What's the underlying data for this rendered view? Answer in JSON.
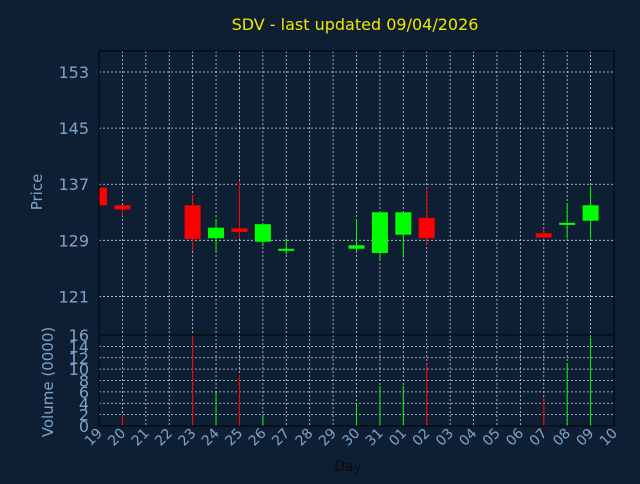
{
  "colors": {
    "background": "#0f1f33",
    "title": "#f2e600",
    "axis_text": "#7ea3c8",
    "grid": "#c8d2dc",
    "up": "#00ff00",
    "down": "#ff0000"
  },
  "chart_data": {
    "type": "candlestick",
    "title": "SDV - last updated 09/04/2026",
    "price_panel": {
      "ylabel": "Price",
      "ylim": [
        115.5,
        156
      ],
      "yticks": [
        121,
        129,
        137,
        145,
        153
      ],
      "grid": true
    },
    "volume_panel": {
      "ylabel": "Volume (0000)",
      "ylim": [
        0,
        16
      ],
      "yticks": [
        0,
        2,
        4,
        6,
        8,
        10,
        12,
        14,
        16
      ],
      "grid": true
    },
    "xlabel": "Day",
    "x_ticks": [
      "19",
      "20",
      "21",
      "22",
      "23",
      "24",
      "25",
      "26",
      "27",
      "28",
      "29",
      "30",
      "31",
      "01",
      "02",
      "03",
      "04",
      "05",
      "06",
      "07",
      "08",
      "09",
      "10"
    ],
    "candles": [
      {
        "x": "19",
        "open": 136.5,
        "high": 136.5,
        "low": 134.0,
        "close": 134.0,
        "volume": 0
      },
      {
        "x": "20",
        "open": 134.0,
        "high": 134.0,
        "low": 132.5,
        "close": 133.4,
        "volume": 2
      },
      {
        "x": "23",
        "open": 134.0,
        "high": 135.5,
        "low": 127.5,
        "close": 129.2,
        "volume": 16
      },
      {
        "x": "24",
        "open": 129.3,
        "high": 132.0,
        "low": 127.5,
        "close": 130.8,
        "volume": 6
      },
      {
        "x": "25",
        "open": 130.7,
        "high": 137.5,
        "low": 129.2,
        "close": 130.2,
        "volume": 9
      },
      {
        "x": "26",
        "open": 128.8,
        "high": 131.5,
        "low": 128.2,
        "close": 131.3,
        "volume": 2
      },
      {
        "x": "27",
        "open": 127.5,
        "high": 129.3,
        "low": 127.0,
        "close": 127.8,
        "volume": 0
      },
      {
        "x": "30",
        "open": 127.8,
        "high": 132.0,
        "low": 127.5,
        "close": 128.3,
        "volume": 4
      },
      {
        "x": "31",
        "open": 127.2,
        "high": 133.0,
        "low": 126.3,
        "close": 133.0,
        "volume": 7
      },
      {
        "x": "01",
        "open": 129.8,
        "high": 133.0,
        "low": 126.5,
        "close": 133.0,
        "volume": 7
      },
      {
        "x": "02",
        "open": 132.2,
        "high": 136.5,
        "low": 128.3,
        "close": 129.3,
        "volume": 11
      },
      {
        "x": "07",
        "open": 130.0,
        "high": 130.7,
        "low": 129.3,
        "close": 129.4,
        "volume": 5
      },
      {
        "x": "08",
        "open": 131.2,
        "high": 134.3,
        "low": 129.3,
        "close": 131.5,
        "volume": 11
      },
      {
        "x": "09",
        "open": 131.8,
        "high": 136.7,
        "low": 129.3,
        "close": 134.0,
        "volume": 15.5
      }
    ]
  }
}
